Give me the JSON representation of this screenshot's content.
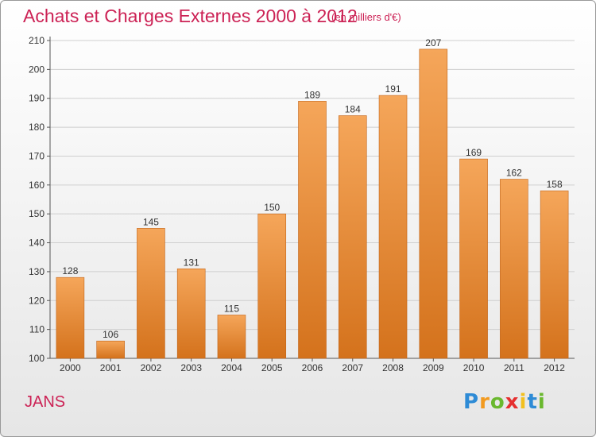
{
  "header": {
    "title": "Achats et Charges Externes 2000 à 2012",
    "unit": "(en milliers d'€)"
  },
  "footer": {
    "place": "JANS",
    "logo_letters": [
      "P",
      "r",
      "o",
      "x",
      "i",
      "t",
      "i"
    ],
    "logo_colors": [
      "#2e8bd6",
      "#f29a1f",
      "#6ab82e",
      "#e52f2f",
      "#f2c01f",
      "#2e8bd6",
      "#6ab82e"
    ]
  },
  "colors": {
    "bar_top": "#f5a65a",
    "bar_bottom": "#d4721c",
    "bar_edge": "#c2651a",
    "grid": "#cfcfcf",
    "text_accent": "#cc2255"
  },
  "chart_data": {
    "type": "bar",
    "categories": [
      "2000",
      "2001",
      "2002",
      "2003",
      "2004",
      "2005",
      "2006",
      "2007",
      "2008",
      "2009",
      "2010",
      "2011",
      "2012"
    ],
    "values": [
      128,
      106,
      145,
      131,
      115,
      150,
      189,
      184,
      191,
      207,
      169,
      162,
      158
    ],
    "yticks": [
      100,
      110,
      120,
      130,
      140,
      150,
      160,
      170,
      180,
      190,
      200,
      210
    ],
    "ylim": [
      100,
      210
    ],
    "grid": true,
    "title": "Achats et Charges Externes 2000 à 2012",
    "xlabel": "",
    "ylabel": ""
  }
}
